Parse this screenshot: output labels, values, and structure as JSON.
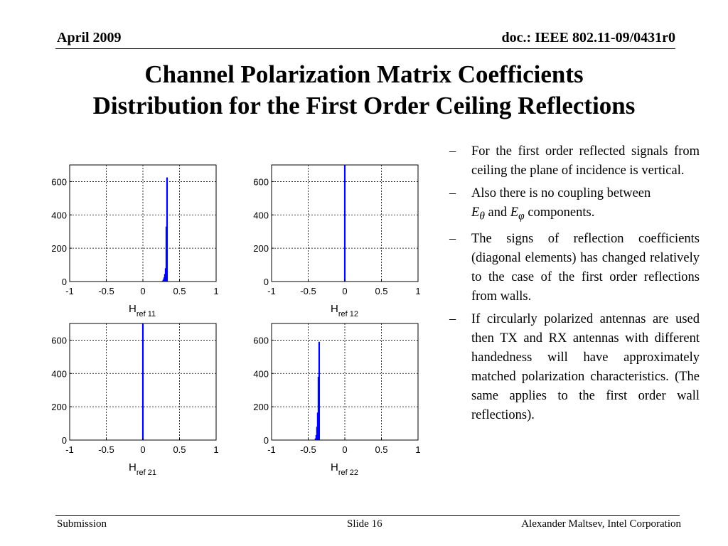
{
  "header": {
    "date": "April 2009",
    "doc_id": "doc.: IEEE 802.11-09/0431r0"
  },
  "title": {
    "line1": "Channel Polarization Matrix Coefficients",
    "line2": "Distribution for the First Order Ceiling Reflections"
  },
  "bullets": {
    "dash": "–",
    "b1": "For the first order reflected signals from ceiling the plane of incidence is vertical.",
    "b2_start": "Also there is no coupling between",
    "b2_e1": "E",
    "b2_theta": "θ",
    "b2_and": " and ",
    "b2_e2": "E",
    "b2_phi": "φ",
    "b2_end": " components.",
    "b3": "The signs of reflection coefficients (diagonal elements) has changed relatively to the case of the first order reflections from walls.",
    "b4": "If circularly polarized antennas are used then TX and RX antennas with different handedness will have approximately matched polarization characteristics. (The same applies to the first order wall reflections)."
  },
  "footer": {
    "left": "Submission",
    "center": "Slide 16",
    "right": "Alexander Maltsev, Intel Corporation"
  },
  "chart_data": [
    {
      "type": "bar",
      "xlabel_main": "H",
      "xlabel_sub": "ref 11",
      "xlim": [
        -1,
        1
      ],
      "ylim": [
        0,
        700
      ],
      "xticks": [
        "-1",
        "-0.5",
        "0",
        "0.5",
        "1"
      ],
      "yticks": [
        "0",
        "200",
        "400",
        "600"
      ],
      "grid": true,
      "x": [
        0.27,
        0.28,
        0.29,
        0.3,
        0.31,
        0.32,
        0.33
      ],
      "values": [
        5,
        12,
        25,
        45,
        80,
        330,
        625
      ],
      "color": "#0000ff"
    },
    {
      "type": "bar",
      "xlabel_main": "H",
      "xlabel_sub": "ref 12",
      "xlim": [
        -1,
        1
      ],
      "ylim": [
        0,
        700
      ],
      "xticks": [
        "-1",
        "-0.5",
        "0",
        "0.5",
        "1"
      ],
      "yticks": [
        "0",
        "200",
        "400",
        "600"
      ],
      "grid": true,
      "x": [
        0
      ],
      "values": [
        700
      ],
      "color": "#0000ff"
    },
    {
      "type": "bar",
      "xlabel_main": "H",
      "xlabel_sub": "ref 21",
      "xlim": [
        -1,
        1
      ],
      "ylim": [
        0,
        700
      ],
      "xticks": [
        "-1",
        "-0.5",
        "0",
        "0.5",
        "1"
      ],
      "yticks": [
        "0",
        "200",
        "400",
        "600"
      ],
      "grid": true,
      "x": [
        0
      ],
      "values": [
        700
      ],
      "color": "#0000ff"
    },
    {
      "type": "bar",
      "xlabel_main": "H",
      "xlabel_sub": "ref 22",
      "xlim": [
        -1,
        1
      ],
      "ylim": [
        0,
        700
      ],
      "xticks": [
        "-1",
        "-0.5",
        "0",
        "0.5",
        "1"
      ],
      "yticks": [
        "0",
        "200",
        "400",
        "600"
      ],
      "grid": true,
      "x": [
        -0.4,
        -0.39,
        -0.38,
        -0.37,
        -0.36,
        -0.35
      ],
      "values": [
        10,
        30,
        80,
        165,
        380,
        590
      ],
      "color": "#0000ff"
    }
  ]
}
